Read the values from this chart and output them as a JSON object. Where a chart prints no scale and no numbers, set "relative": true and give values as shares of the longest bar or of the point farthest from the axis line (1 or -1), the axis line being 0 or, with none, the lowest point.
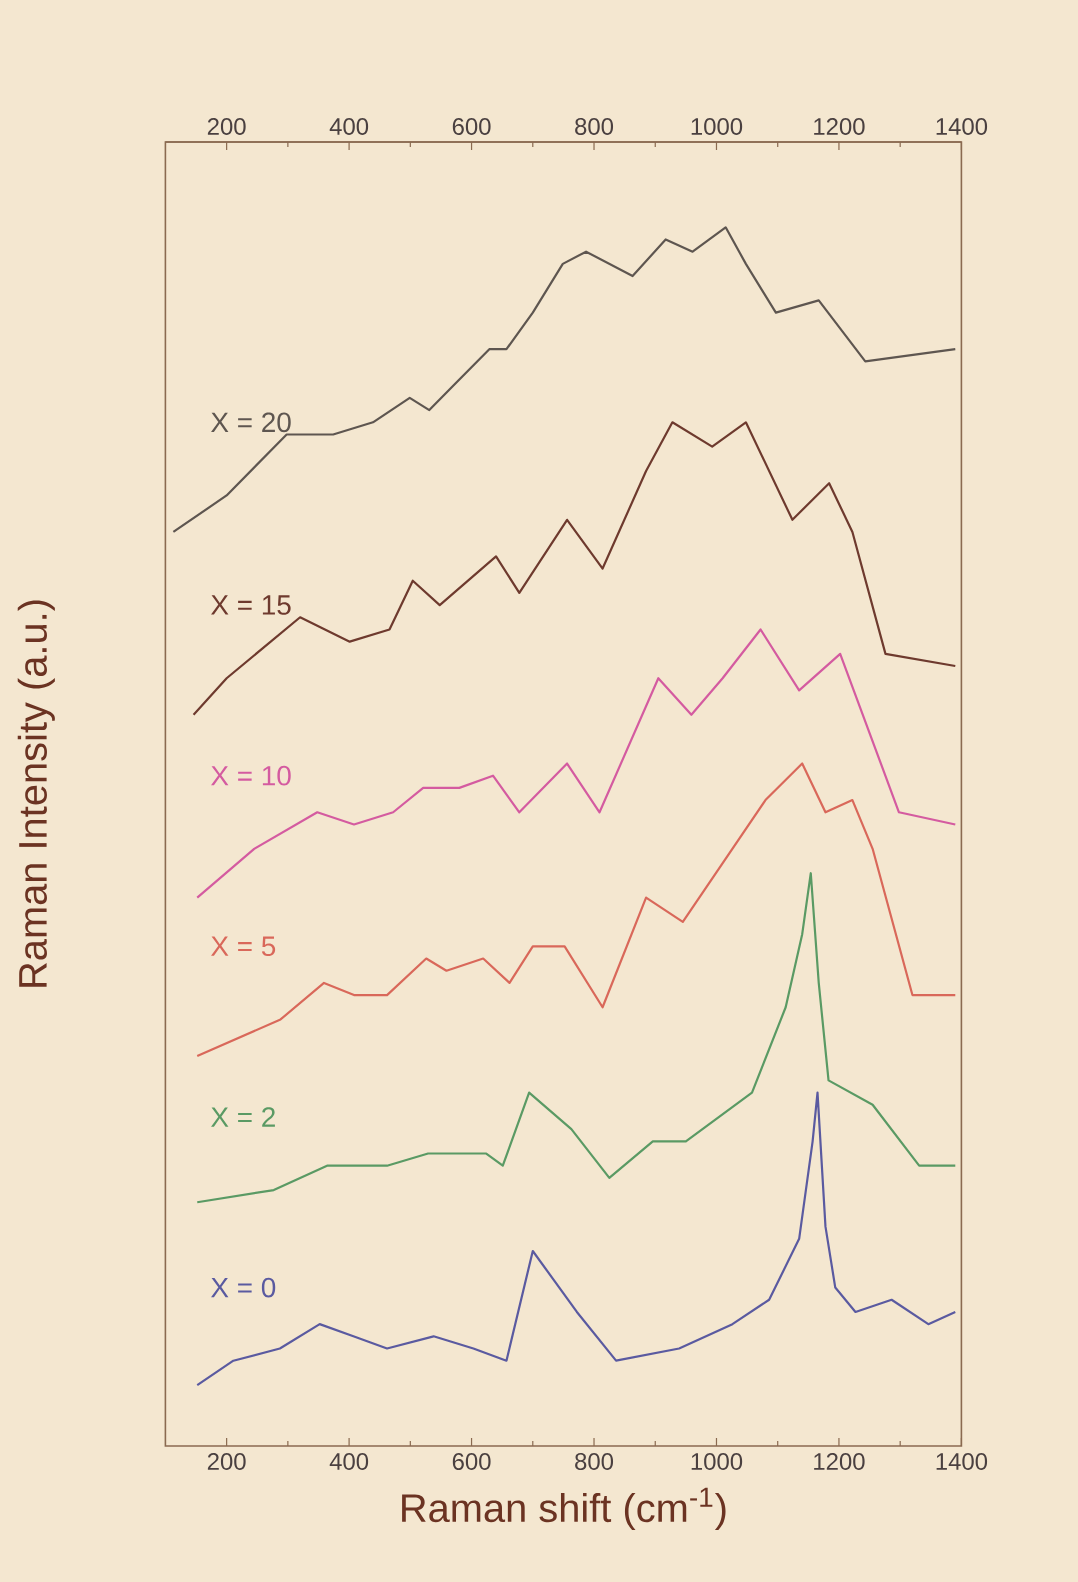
{
  "chart_data": {
    "type": "line",
    "relative": true,
    "xlabel": "Raman shift (cm$^{-1}$)",
    "ylabel": "Raman Intensity (a.u.)",
    "xlim": [
      100,
      1400
    ],
    "xticks": [
      200,
      400,
      600,
      800,
      1000,
      1200,
      1400
    ],
    "x2lim": [
      100,
      1400
    ],
    "x2ticks": [
      200,
      400,
      600,
      800,
      1000,
      1200,
      1400
    ],
    "tick_labels": "x",
    "legend": false,
    "grid": false,
    "series": [
      {
        "name": "X = 20",
        "color": "#5e5650",
        "x": [
          113,
          200,
          298,
          374,
          439,
          499,
          531,
          570,
          629,
          657,
          700,
          749,
          787,
          863,
          917,
          961,
          1015,
          1048,
          1097,
          1167,
          1243,
          1390
        ],
        "values": [
          0.75,
          0.78,
          0.83,
          0.83,
          0.84,
          0.86,
          0.85,
          0.87,
          0.9,
          0.9,
          0.93,
          0.97,
          0.98,
          0.96,
          0.99,
          0.98,
          1.0,
          0.97,
          0.93,
          0.94,
          0.89,
          0.9
        ]
      },
      {
        "name": "X = 15",
        "color": "#6e3a2e",
        "x": [
          146,
          200,
          320,
          401,
          466,
          504,
          548,
          640,
          678,
          756,
          814,
          885,
          928,
          993,
          1048,
          1124,
          1184,
          1222,
          1276,
          1390
        ],
        "values": [
          0.6,
          0.63,
          0.68,
          0.66,
          0.67,
          0.71,
          0.69,
          0.73,
          0.7,
          0.76,
          0.72,
          0.8,
          0.84,
          0.82,
          0.84,
          0.76,
          0.79,
          0.75,
          0.65,
          0.64
        ]
      },
      {
        "name": "X = 10",
        "color": "#d45ba0",
        "x": [
          152,
          245,
          348,
          408,
          472,
          521,
          580,
          635,
          678,
          756,
          809,
          905,
          959,
          1010,
          1072,
          1135,
          1202,
          1298,
          1390
        ],
        "values": [
          0.45,
          0.49,
          0.52,
          0.51,
          0.52,
          0.54,
          0.54,
          0.55,
          0.52,
          0.56,
          0.52,
          0.63,
          0.6,
          0.63,
          0.67,
          0.62,
          0.65,
          0.52,
          0.51
        ]
      },
      {
        "name": "X = 5",
        "color": "#d9685a",
        "x": [
          152,
          288,
          359,
          408,
          462,
          526,
          559,
          619,
          662,
          700,
          752,
          814,
          885,
          945,
          1080,
          1140,
          1178,
          1222,
          1255,
          1320,
          1390
        ],
        "values": [
          0.32,
          0.35,
          0.38,
          0.37,
          0.37,
          0.4,
          0.39,
          0.4,
          0.38,
          0.41,
          0.41,
          0.36,
          0.45,
          0.43,
          0.53,
          0.56,
          0.52,
          0.53,
          0.49,
          0.37,
          0.37
        ]
      },
      {
        "name": "X = 2",
        "color": "#5a9a64",
        "x": [
          152,
          277,
          364,
          462,
          529,
          624,
          651,
          694,
          763,
          825,
          896,
          950,
          1058,
          1113,
          1140,
          1154,
          1167,
          1183,
          1255,
          1331,
          1390
        ],
        "values": [
          0.2,
          0.21,
          0.23,
          0.23,
          0.24,
          0.24,
          0.23,
          0.29,
          0.26,
          0.22,
          0.25,
          0.25,
          0.29,
          0.36,
          0.42,
          0.47,
          0.38,
          0.3,
          0.28,
          0.23,
          0.23
        ]
      },
      {
        "name": "X = 0",
        "color": "#5a5aa0",
        "x": [
          152,
          211,
          287,
          352,
          407,
          462,
          538,
          603,
          657,
          700,
          772,
          836,
          939,
          1026,
          1086,
          1135,
          1157,
          1165,
          1178,
          1194,
          1227,
          1286,
          1346,
          1390
        ],
        "values": [
          0.05,
          0.07,
          0.08,
          0.1,
          0.09,
          0.08,
          0.09,
          0.08,
          0.07,
          0.16,
          0.11,
          0.07,
          0.08,
          0.1,
          0.12,
          0.17,
          0.25,
          0.29,
          0.18,
          0.13,
          0.11,
          0.12,
          0.1,
          0.11
        ]
      }
    ]
  }
}
